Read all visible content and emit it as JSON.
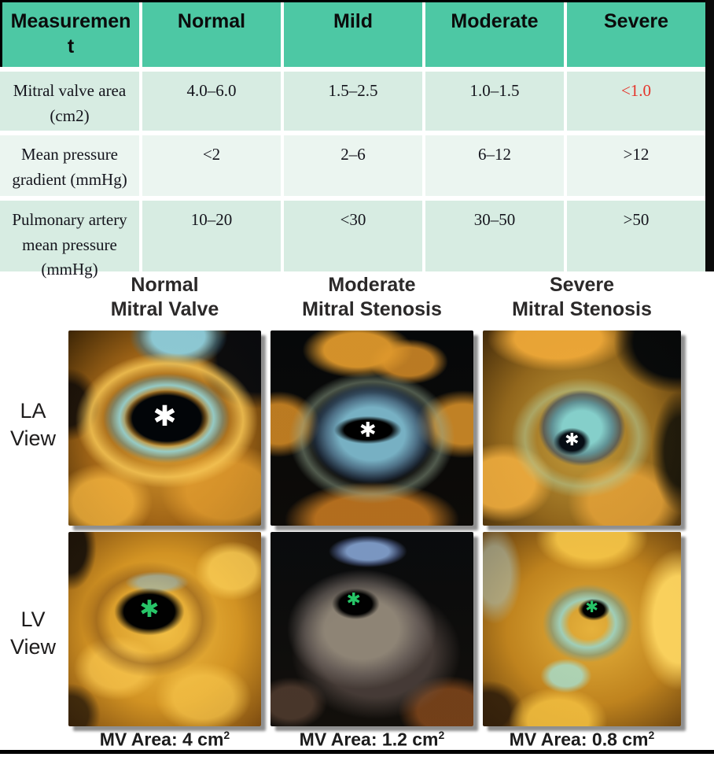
{
  "table": {
    "headers": [
      "Measurement",
      "Normal",
      "Mild",
      "Moderate",
      "Severe"
    ],
    "rows": [
      {
        "measurement": "Mitral valve area (cm2)",
        "normal": "4.0–6.0",
        "mild": "1.5–2.5",
        "moderate": "1.0–1.5",
        "severe": "<1.0"
      },
      {
        "measurement": "Mean pressure gradient (mmHg)",
        "normal": "<2",
        "mild": "2–6",
        "moderate": "6–12",
        "severe": ">12"
      },
      {
        "measurement": "Pulmonary artery mean pressure (mmHg)",
        "normal": "10–20",
        "mild": "<30",
        "moderate": "30–50",
        "severe": ">50"
      }
    ],
    "colors": {
      "header_bg": "#4dc8a4",
      "row_bg": "#d7ece2",
      "row_alt_bg": "#ebf5f0",
      "severe_highlight_text": "#e5342a"
    }
  },
  "figure": {
    "column_titles": [
      {
        "line1": "Normal",
        "line2": "Mitral Valve"
      },
      {
        "line1": "Moderate",
        "line2": "Mitral Stenosis"
      },
      {
        "line1": "Severe",
        "line2": "Mitral Stenosis"
      }
    ],
    "row_labels": [
      {
        "line1": "LA",
        "line2": "View"
      },
      {
        "line1": "LV",
        "line2": "View"
      }
    ],
    "captions": [
      {
        "text": "MV Area: 4 cm",
        "sup": "2"
      },
      {
        "text": "MV Area: 1.2 cm",
        "sup": "2"
      },
      {
        "text": "MV Area: 0.8 cm",
        "sup": "2"
      }
    ],
    "marker_glyph": "✱",
    "marker_colors": {
      "la_view": "#ffffff",
      "lv_view": "#27c467"
    }
  }
}
